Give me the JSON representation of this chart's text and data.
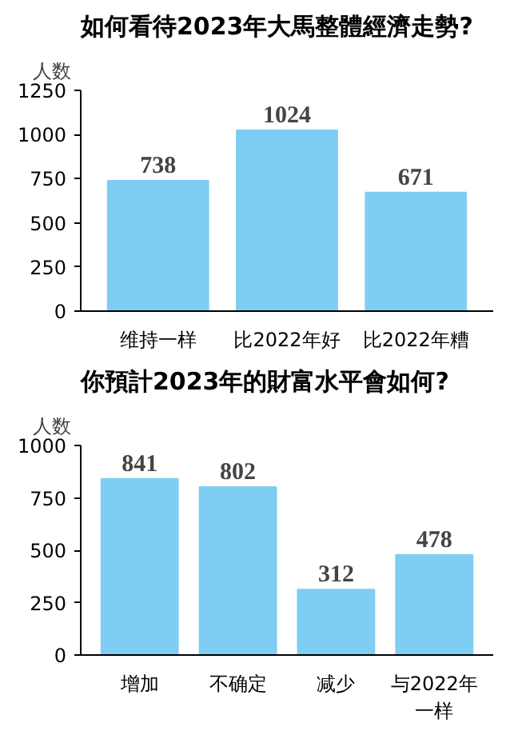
{
  "chart_data": [
    {
      "type": "bar",
      "title": "如何看待2023年大馬整體經濟走勢?",
      "ylabel": "人数",
      "categories": [
        "维持一样",
        "比2022年好",
        "比2022年糟"
      ],
      "values": [
        738,
        1024,
        671
      ],
      "color": "#7fcdf2",
      "ylim": [
        0,
        1250
      ],
      "yticks": [
        0,
        250,
        500,
        750,
        1000,
        1250
      ],
      "data_labels": true,
      "grid": false
    },
    {
      "type": "bar",
      "title": "你預計2023年的財富水平會如何?",
      "ylabel": "人数",
      "categories": [
        "增加",
        "不确定",
        "减少",
        "与2022年一样"
      ],
      "values": [
        841,
        802,
        312,
        478
      ],
      "color": "#7fcdf2",
      "ylim": [
        0,
        1000
      ],
      "yticks": [
        0,
        250,
        500,
        750,
        1000
      ],
      "data_labels": true,
      "grid": false
    }
  ]
}
